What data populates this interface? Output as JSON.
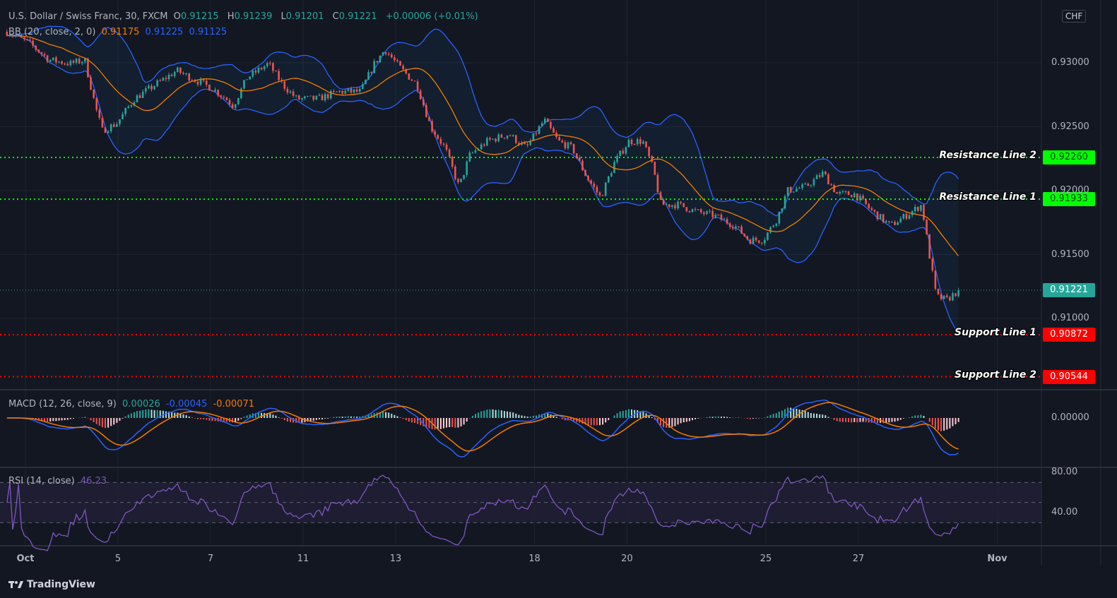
{
  "header": {
    "symbol": "U.S. Dollar / Swiss Franc, 30, FXCM",
    "o_label": "O",
    "o": "0.91215",
    "h_label": "H",
    "h": "0.91239",
    "l_label": "L",
    "l": "0.91201",
    "c_label": "C",
    "c": "0.91221",
    "change": "+0.00006 (+0.01%)"
  },
  "bb_legend": {
    "label": "BB (20, close, 2, 0)",
    "basis": "0.91175",
    "upper": "0.91225",
    "lower": "0.91125"
  },
  "macd_legend": {
    "label": "MACD (12, 26, close, 9)",
    "histogram": "0.00026",
    "macd": "-0.00045",
    "signal": "-0.00071"
  },
  "rsi_legend": {
    "label": "RSI (14, close)",
    "value": "46.23"
  },
  "currency": "CHF",
  "footer": {
    "brand": "TradingView"
  },
  "colors": {
    "background": "#131722",
    "up": "#26a69a",
    "down": "#ef5350",
    "bb_basis": "#f57c00",
    "bb_bands": "#2962ff",
    "macd": "#2962ff",
    "signal": "#f57c00",
    "rsi": "#7e57c2",
    "resistance": "#00ff00",
    "support": "#ff0000"
  },
  "chart_data": {
    "type": "candlestick",
    "symbol": "USDCHF",
    "interval": "30",
    "x_ticks": [
      {
        "label": "Oct",
        "day": 0
      },
      {
        "label": "5",
        "day": 2
      },
      {
        "label": "7",
        "day": 4
      },
      {
        "label": "11",
        "day": 6
      },
      {
        "label": "13",
        "day": 8
      },
      {
        "label": "18",
        "day": 11
      },
      {
        "label": "20",
        "day": 13
      },
      {
        "label": "25",
        "day": 16
      },
      {
        "label": "27",
        "day": 18
      },
      {
        "label": "Nov",
        "day": 21
      }
    ],
    "y_ticks": [
      "0.93000",
      "0.92500",
      "0.92000",
      "0.91500",
      "0.91000"
    ],
    "price_path": [
      [
        -0.4,
        0.93243
      ],
      [
        0.06,
        0.9316
      ],
      [
        0.52,
        0.93022
      ],
      [
        0.98,
        0.92994
      ],
      [
        1.28,
        0.93022
      ],
      [
        1.51,
        0.92663
      ],
      [
        1.66,
        0.9247
      ],
      [
        1.97,
        0.92525
      ],
      [
        2.35,
        0.92718
      ],
      [
        2.81,
        0.92829
      ],
      [
        3.27,
        0.92939
      ],
      [
        3.57,
        0.92884
      ],
      [
        4.03,
        0.92801
      ],
      [
        4.34,
        0.92718
      ],
      [
        4.49,
        0.92663
      ],
      [
        4.79,
        0.92884
      ],
      [
        5.25,
        0.92994
      ],
      [
        5.56,
        0.92829
      ],
      [
        5.86,
        0.92718
      ],
      [
        6.32,
        0.92718
      ],
      [
        6.78,
        0.92774
      ],
      [
        7.24,
        0.92774
      ],
      [
        7.54,
        0.92994
      ],
      [
        7.77,
        0.93105
      ],
      [
        8.08,
        0.92967
      ],
      [
        8.46,
        0.92829
      ],
      [
        8.76,
        0.92497
      ],
      [
        9.07,
        0.92332
      ],
      [
        9.37,
        0.92028
      ],
      [
        9.6,
        0.92276
      ],
      [
        9.98,
        0.92387
      ],
      [
        10.44,
        0.92442
      ],
      [
        10.82,
        0.92332
      ],
      [
        11.21,
        0.92553
      ],
      [
        11.51,
        0.92387
      ],
      [
        11.82,
        0.92332
      ],
      [
        12.12,
        0.92111
      ],
      [
        12.43,
        0.91945
      ],
      [
        12.73,
        0.92221
      ],
      [
        13.04,
        0.92387
      ],
      [
        13.34,
        0.92387
      ],
      [
        13.57,
        0.92166
      ],
      [
        13.73,
        0.9189
      ],
      [
        14.11,
        0.9189
      ],
      [
        14.49,
        0.91835
      ],
      [
        14.87,
        0.91807
      ],
      [
        15.33,
        0.91725
      ],
      [
        15.63,
        0.91614
      ],
      [
        15.94,
        0.91614
      ],
      [
        16.24,
        0.9178
      ],
      [
        16.47,
        0.92001
      ],
      [
        16.85,
        0.92028
      ],
      [
        17.24,
        0.92139
      ],
      [
        17.54,
        0.91973
      ],
      [
        17.92,
        0.91973
      ],
      [
        18.31,
        0.91835
      ],
      [
        18.69,
        0.91725
      ],
      [
        19.15,
        0.91835
      ],
      [
        19.37,
        0.9189
      ],
      [
        19.53,
        0.91504
      ],
      [
        19.68,
        0.91173
      ],
      [
        19.91,
        0.91145
      ],
      [
        20.17,
        0.91221
      ]
    ],
    "last_price": "0.91221",
    "levels": [
      {
        "name": "Resistance Line 2",
        "price": "0.92260",
        "kind": "resistance"
      },
      {
        "name": "Resistance Line 1",
        "price": "0.91933",
        "kind": "resistance"
      },
      {
        "name": "Support Line 1",
        "price": "0.90872",
        "kind": "support"
      },
      {
        "name": "Support Line 2",
        "price": "0.90544",
        "kind": "support"
      }
    ],
    "macd_axis": [
      "0.00000"
    ],
    "rsi_axis": [
      "80.00",
      "40.00"
    ],
    "rsi_bands": [
      70,
      50,
      30
    ]
  }
}
